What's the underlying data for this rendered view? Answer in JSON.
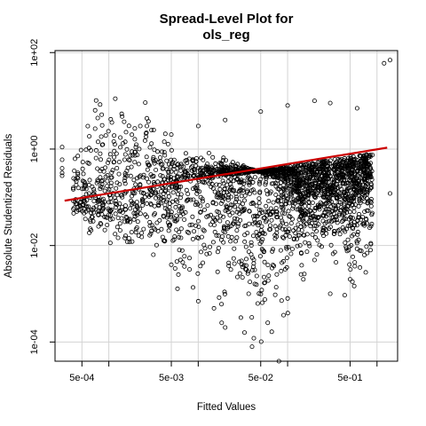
{
  "chart_data": {
    "type": "scatter",
    "title_lines": [
      "Spread-Level Plot for",
      "ols_reg"
    ],
    "xlabel": "Fitted Values",
    "ylabel": "Absolute Studentized Residuals",
    "x_scale": "log",
    "y_scale": "log",
    "xlim": [
      0.00025,
      1.7
    ],
    "ylim": [
      4e-05,
      110
    ],
    "grid": true,
    "x_ticks": [
      {
        "value": 0.0005,
        "label": "5e-04"
      },
      {
        "value": 0.001,
        "label": ""
      },
      {
        "value": 0.005,
        "label": "5e-03"
      },
      {
        "value": 0.01,
        "label": ""
      },
      {
        "value": 0.05,
        "label": "5e-02"
      },
      {
        "value": 0.1,
        "label": ""
      },
      {
        "value": 0.5,
        "label": "5e-01"
      },
      {
        "value": 1,
        "label": ""
      }
    ],
    "y_ticks": [
      {
        "value": 0.0001,
        "label": "1e-04"
      },
      {
        "value": 0.01,
        "label": "1e-02"
      },
      {
        "value": 1,
        "label": "1e+00"
      },
      {
        "value": 100,
        "label": "1e+02"
      }
    ],
    "fit_line": {
      "color": "#cc0000",
      "points": [
        [
          0.00032,
          0.085
        ],
        [
          1.3,
          1.07
        ]
      ]
    },
    "point_color": "#000000",
    "points_sample": [
      [
        0.0003,
        1.1
      ],
      [
        0.0003,
        0.6
      ],
      [
        0.0003,
        0.4
      ],
      [
        0.0003,
        0.32
      ],
      [
        0.0003,
        0.28
      ],
      [
        0.00045,
        0.3
      ],
      [
        0.0006,
        1.05
      ],
      [
        0.0006,
        0.5
      ],
      [
        0.0006,
        0.18
      ],
      [
        0.0006,
        0.12
      ],
      [
        0.0008,
        0.8
      ],
      [
        0.0008,
        0.35
      ],
      [
        0.0008,
        0.15
      ],
      [
        0.0015,
        0.6
      ],
      [
        0.0015,
        0.22
      ],
      [
        0.003,
        0.02
      ],
      [
        0.004,
        0.015
      ],
      [
        0.005,
        0.004
      ],
      [
        0.006,
        0.0025
      ],
      [
        0.007,
        0.006
      ],
      [
        0.008,
        0.0032
      ],
      [
        0.01,
        0.0007
      ],
      [
        0.015,
        0.0005
      ],
      [
        0.02,
        0.0002
      ],
      [
        0.03,
        0.00032
      ],
      [
        0.04,
        8e-05
      ],
      [
        0.06,
        0.00025
      ],
      [
        0.08,
        4e-05
      ],
      [
        0.1,
        0.0008
      ],
      [
        0.15,
        0.002
      ],
      [
        0.2,
        0.005
      ],
      [
        0.3,
        0.001
      ],
      [
        0.5,
        0.002
      ],
      [
        1.2,
        60
      ],
      [
        1.4,
        70
      ],
      [
        1.4,
        0.12
      ],
      [
        0.002,
        1.1
      ],
      [
        0.003,
        1.3
      ],
      [
        0.005,
        2.0
      ],
      [
        0.01,
        3.0
      ],
      [
        0.02,
        4.0
      ],
      [
        0.05,
        6.0
      ],
      [
        0.1,
        8.0
      ],
      [
        0.2,
        10.0
      ],
      [
        0.3,
        9.0
      ],
      [
        0.6,
        7.0
      ]
    ]
  }
}
